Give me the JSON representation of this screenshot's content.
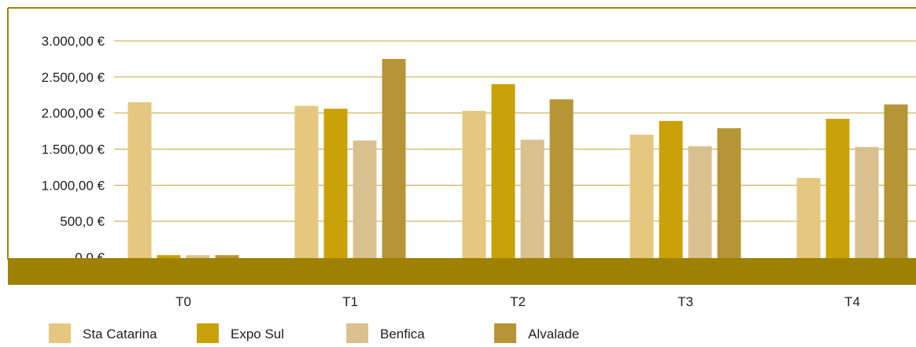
{
  "chart_data": {
    "type": "bar",
    "categories": [
      "T0",
      "T1",
      "T2",
      "T3",
      "T4"
    ],
    "y_ticks": [
      "0,0 €",
      "500,0 €",
      "1.000,00 €",
      "1.500,00 €",
      "2.000,00 €",
      "2.500,00 €",
      "3.000,00 €"
    ],
    "ylim": [
      0,
      3000
    ],
    "grid": true,
    "legend_position": "bottom-left",
    "series": [
      {
        "name": "Sta Catarina",
        "color": "#e5c77f",
        "values": [
          2150,
          2100,
          2030,
          1700,
          1100
        ]
      },
      {
        "name": "Expo Sul",
        "color": "#c9a20a",
        "values": [
          30,
          2060,
          2400,
          1890,
          1920
        ]
      },
      {
        "name": "Benfica",
        "color": "#d9c18f",
        "values": [
          30,
          1620,
          1630,
          1540,
          1530
        ]
      },
      {
        "name": "Alvalade",
        "color": "#b59535",
        "values": [
          30,
          2750,
          2190,
          1790,
          2120
        ]
      }
    ],
    "colors": {
      "frame": "#a08400",
      "floor": "#9e8100",
      "grid": "#c4a838"
    }
  }
}
